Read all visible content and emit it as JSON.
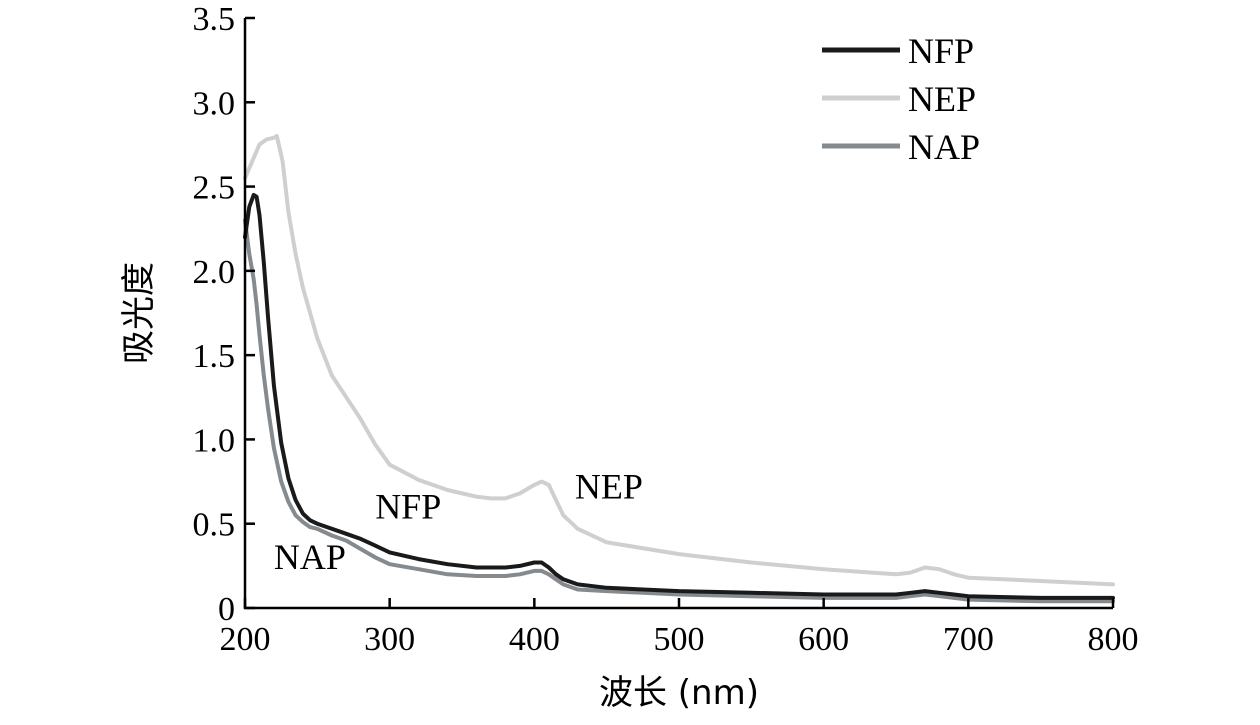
{
  "chart_data": {
    "type": "line",
    "title": "",
    "xlabel": "波长 (nm)",
    "ylabel": "吸光度",
    "xlim": [
      200,
      800
    ],
    "ylim": [
      0,
      3.5
    ],
    "xticks": [
      200,
      300,
      400,
      500,
      600,
      700,
      800
    ],
    "xtick_labels": [
      "200",
      "300",
      "400",
      "500",
      "600",
      "700",
      "800"
    ],
    "yticks": [
      0,
      0.5,
      1.0,
      1.5,
      2.0,
      2.5,
      3.0,
      3.5
    ],
    "ytick_labels": [
      "0",
      "0.5",
      "1.0",
      "1.5",
      "2.0",
      "2.5",
      "3.0",
      "3.5"
    ],
    "grid": false,
    "legend_position": "top-right",
    "series": [
      {
        "name": "NFP",
        "color": "#1a1a1a",
        "x": [
          200,
          203,
          206,
          208,
          210,
          213,
          216,
          220,
          225,
          230,
          235,
          240,
          245,
          250,
          260,
          270,
          280,
          290,
          300,
          320,
          340,
          360,
          380,
          390,
          400,
          405,
          410,
          415,
          420,
          430,
          450,
          500,
          550,
          600,
          650,
          660,
          670,
          680,
          690,
          700,
          750,
          800
        ],
        "y": [
          2.2,
          2.38,
          2.45,
          2.44,
          2.33,
          2.05,
          1.72,
          1.32,
          0.98,
          0.77,
          0.64,
          0.56,
          0.52,
          0.5,
          0.47,
          0.44,
          0.41,
          0.37,
          0.33,
          0.29,
          0.26,
          0.24,
          0.24,
          0.25,
          0.27,
          0.27,
          0.24,
          0.2,
          0.17,
          0.14,
          0.12,
          0.1,
          0.09,
          0.08,
          0.08,
          0.09,
          0.1,
          0.09,
          0.08,
          0.07,
          0.06,
          0.06
        ]
      },
      {
        "name": "NEP",
        "color": "#cfcfcf",
        "x": [
          200,
          205,
          210,
          215,
          220,
          222,
          226,
          230,
          235,
          240,
          250,
          260,
          270,
          280,
          290,
          300,
          320,
          340,
          360,
          370,
          380,
          390,
          400,
          405,
          410,
          415,
          420,
          430,
          450,
          500,
          550,
          600,
          650,
          660,
          670,
          680,
          690,
          700,
          750,
          800
        ],
        "y": [
          2.55,
          2.65,
          2.75,
          2.78,
          2.79,
          2.8,
          2.65,
          2.35,
          2.1,
          1.9,
          1.6,
          1.38,
          1.25,
          1.12,
          0.97,
          0.85,
          0.76,
          0.7,
          0.66,
          0.65,
          0.65,
          0.68,
          0.73,
          0.75,
          0.73,
          0.64,
          0.55,
          0.47,
          0.39,
          0.32,
          0.27,
          0.23,
          0.2,
          0.21,
          0.24,
          0.23,
          0.2,
          0.18,
          0.16,
          0.14
        ]
      },
      {
        "name": "NAP",
        "color": "#858a8f",
        "x": [
          200,
          203,
          206,
          208,
          210,
          213,
          216,
          220,
          225,
          230,
          235,
          240,
          245,
          250,
          260,
          270,
          280,
          290,
          300,
          320,
          340,
          360,
          380,
          390,
          400,
          405,
          410,
          415,
          420,
          430,
          450,
          500,
          550,
          600,
          650,
          660,
          670,
          680,
          690,
          700,
          750,
          800
        ],
        "y": [
          2.3,
          2.1,
          1.95,
          1.8,
          1.62,
          1.38,
          1.18,
          0.95,
          0.75,
          0.63,
          0.55,
          0.51,
          0.48,
          0.47,
          0.43,
          0.4,
          0.35,
          0.3,
          0.26,
          0.23,
          0.2,
          0.19,
          0.19,
          0.2,
          0.22,
          0.22,
          0.2,
          0.17,
          0.14,
          0.11,
          0.1,
          0.08,
          0.07,
          0.06,
          0.06,
          0.07,
          0.08,
          0.07,
          0.06,
          0.05,
          0.04,
          0.04
        ]
      }
    ],
    "annotations": [
      {
        "text": "NFP",
        "x": 290,
        "y": 0.53
      },
      {
        "text": "NEP",
        "x": 428,
        "y": 0.65
      },
      {
        "text": "NAP",
        "x": 220,
        "y": 0.23
      }
    ]
  }
}
